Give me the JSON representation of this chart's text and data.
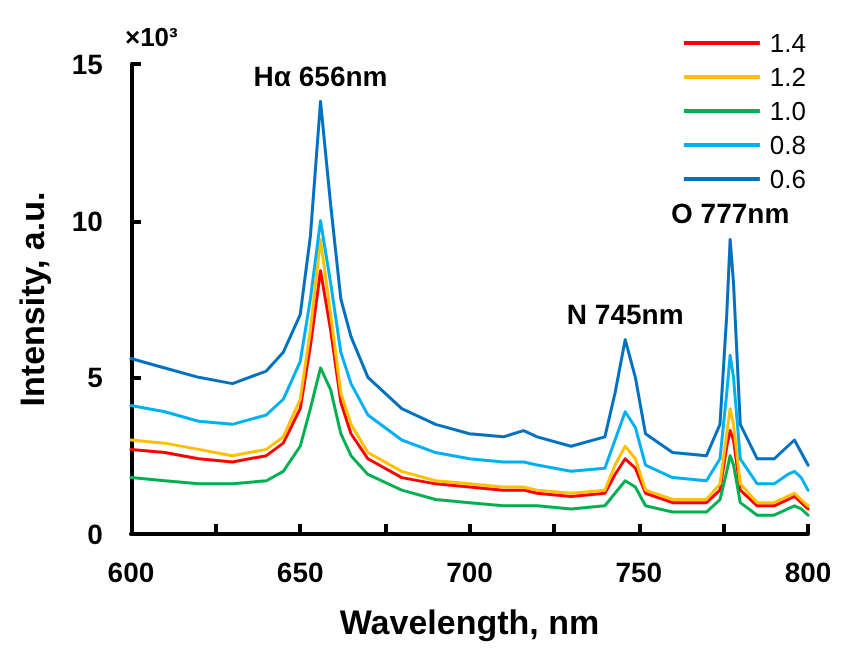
{
  "chart_data": {
    "type": "line",
    "xlabel": "Wavelength, nm",
    "ylabel": "Intensity, a.u.",
    "x": [
      600,
      610,
      620,
      630,
      640,
      645,
      650,
      653,
      656,
      659,
      662,
      665,
      670,
      680,
      690,
      700,
      710,
      716,
      720,
      730,
      740,
      743,
      746,
      749,
      752,
      760,
      770,
      774,
      776,
      777,
      778,
      780,
      785,
      790,
      794,
      796,
      798,
      800
    ],
    "series": [
      {
        "name": "1.4",
        "color": "#ff0000",
        "values": [
          2.7,
          2.6,
          2.4,
          2.3,
          2.5,
          2.9,
          4.0,
          6.0,
          8.4,
          6.5,
          4.2,
          3.2,
          2.4,
          1.8,
          1.6,
          1.5,
          1.4,
          1.4,
          1.3,
          1.2,
          1.3,
          1.9,
          2.4,
          2.1,
          1.3,
          1.0,
          1.0,
          1.4,
          2.8,
          3.3,
          3.0,
          1.4,
          0.9,
          0.9,
          1.1,
          1.2,
          1.0,
          0.8
        ]
      },
      {
        "name": "1.2",
        "color": "#ffc000",
        "values": [
          3.0,
          2.9,
          2.7,
          2.5,
          2.7,
          3.1,
          4.3,
          6.5,
          9.4,
          7.0,
          4.5,
          3.5,
          2.6,
          2.0,
          1.7,
          1.6,
          1.5,
          1.5,
          1.4,
          1.3,
          1.4,
          2.2,
          2.8,
          2.4,
          1.4,
          1.1,
          1.1,
          1.6,
          3.2,
          4.0,
          3.5,
          1.6,
          1.0,
          1.0,
          1.2,
          1.3,
          1.1,
          0.9
        ]
      },
      {
        "name": "1.0",
        "color": "#00b050",
        "values": [
          1.8,
          1.7,
          1.6,
          1.6,
          1.7,
          2.0,
          2.8,
          4.0,
          5.3,
          4.6,
          3.2,
          2.5,
          1.9,
          1.4,
          1.1,
          1.0,
          0.9,
          0.9,
          0.9,
          0.8,
          0.9,
          1.3,
          1.7,
          1.5,
          0.9,
          0.7,
          0.7,
          1.1,
          2.0,
          2.5,
          2.2,
          1.0,
          0.6,
          0.6,
          0.8,
          0.9,
          0.8,
          0.6
        ]
      },
      {
        "name": "0.8",
        "color": "#00b0f0",
        "values": [
          4.1,
          3.9,
          3.6,
          3.5,
          3.8,
          4.3,
          5.5,
          7.5,
          10.0,
          8.0,
          5.8,
          4.8,
          3.8,
          3.0,
          2.6,
          2.4,
          2.3,
          2.3,
          2.2,
          2.0,
          2.1,
          3.0,
          3.9,
          3.4,
          2.2,
          1.8,
          1.7,
          2.4,
          4.5,
          5.7,
          5.0,
          2.4,
          1.6,
          1.6,
          1.9,
          2.0,
          1.8,
          1.4
        ]
      },
      {
        "name": "0.6",
        "color": "#0070c0",
        "values": [
          5.6,
          5.3,
          5.0,
          4.8,
          5.2,
          5.8,
          7.0,
          9.5,
          13.8,
          10.5,
          7.5,
          6.3,
          5.0,
          4.0,
          3.5,
          3.2,
          3.1,
          3.3,
          3.1,
          2.8,
          3.1,
          4.5,
          6.2,
          5.0,
          3.2,
          2.6,
          2.5,
          3.5,
          7.0,
          9.4,
          8.0,
          3.5,
          2.4,
          2.4,
          2.8,
          3.0,
          2.6,
          2.2
        ]
      }
    ],
    "xlim": [
      600,
      800
    ],
    "xticks": [
      600,
      {
        "value": 625,
        "label": null
      },
      650,
      {
        "value": 675,
        "label": null
      },
      700,
      {
        "value": 725,
        "label": null
      },
      750,
      {
        "value": 775,
        "label": null
      },
      800
    ],
    "ylim": [
      0,
      15
    ],
    "yticks": [
      0,
      5,
      10,
      15
    ],
    "annotations": [
      "×10³",
      {
        "text": "Hα 656nm",
        "x": 656,
        "y": 13.8
      },
      {
        "text": "N 745nm",
        "x": 746,
        "y": 6.2
      },
      {
        "text": "O 777nm",
        "x": 777,
        "y": 9.4
      }
    ],
    "legend": "top right",
    "grid": false,
    "marker": "none",
    "line_style": "solid"
  }
}
